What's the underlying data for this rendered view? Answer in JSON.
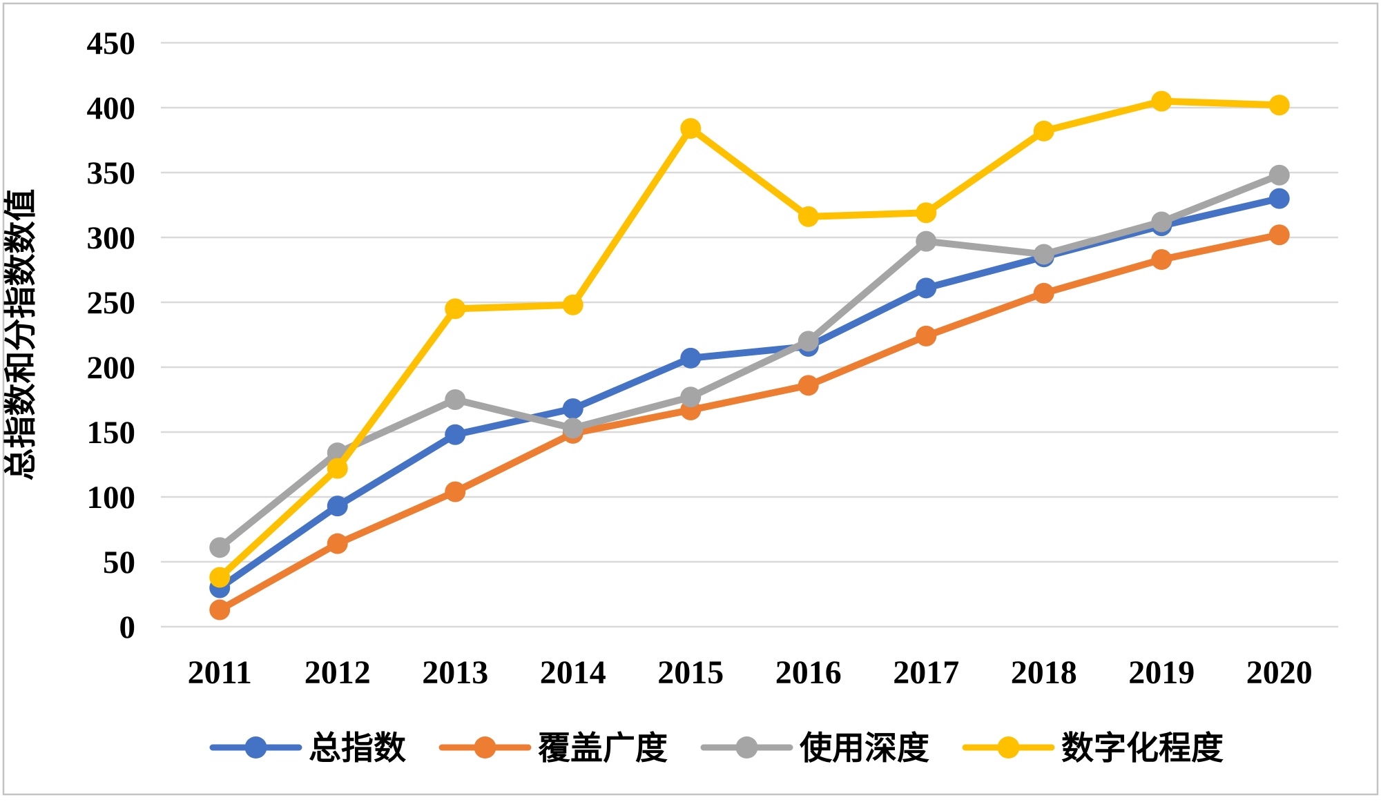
{
  "frame": {
    "background": "#FFFFFF",
    "border_color": "#C3C3C3",
    "gridline_color": "#D9D9D9",
    "text_color": "#000000"
  },
  "chart_data": {
    "type": "line",
    "title": "",
    "xlabel": "",
    "ylabel": "总指数和分指数数值",
    "categories": [
      "2011",
      "2012",
      "2013",
      "2014",
      "2015",
      "2016",
      "2017",
      "2018",
      "2019",
      "2020"
    ],
    "series": [
      {
        "name": "总指数",
        "color": "#4472C4",
        "values": [
          30,
          93,
          148,
          168,
          207,
          216,
          261,
          285,
          309,
          330
        ]
      },
      {
        "name": "覆盖广度",
        "color": "#ED7D31",
        "values": [
          13,
          64,
          104,
          149,
          167,
          186,
          224,
          257,
          283,
          302
        ]
      },
      {
        "name": "使用深度",
        "color": "#A5A5A5",
        "values": [
          61,
          134,
          175,
          153,
          177,
          220,
          297,
          287,
          312,
          348
        ]
      },
      {
        "name": "数字化程度",
        "color": "#FFC000",
        "values": [
          38,
          122,
          245,
          248,
          384,
          316,
          319,
          382,
          405,
          402
        ]
      }
    ],
    "y_axis": {
      "min": 0,
      "max": 450,
      "step": 50
    },
    "grid": true,
    "legend_position": "bottom",
    "marker": "circle"
  }
}
